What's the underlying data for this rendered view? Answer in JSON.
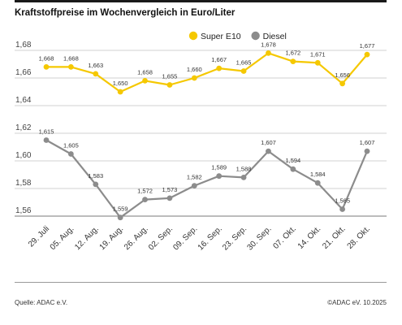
{
  "header": {
    "title": "Kraftstoffpreise im Wochenvergleich in Euro/Liter"
  },
  "footer": {
    "source": "Quelle: ADAC e.V.",
    "copyright": "©ADAC eV. 10.2025"
  },
  "chart_data": {
    "type": "line",
    "title": "Kraftstoffpreise im Wochenvergleich in Euro/Liter",
    "xlabel": "",
    "ylabel": "",
    "categories": [
      "29. Juli",
      "05. Aug.",
      "12. Aug.",
      "19. Aug.",
      "26. Aug.",
      "02. Sep.",
      "09. Sep.",
      "16. Sep.",
      "23. Sep.",
      "30. Sep.",
      "07. Okt.",
      "14. Okt.",
      "21. Okt.",
      "28. Okt."
    ],
    "y_ticks": [
      "1,56",
      "1,58",
      "1,60",
      "1,62",
      "1,64",
      "1,66",
      "1,68"
    ],
    "y_tick_values": [
      1.56,
      1.58,
      1.6,
      1.62,
      1.64,
      1.66,
      1.68
    ],
    "legend_position": "top-right",
    "grid": true,
    "series": [
      {
        "name": "Super E10",
        "color": "#f5c800",
        "values": [
          1.668,
          1.668,
          1.663,
          1.65,
          1.658,
          1.655,
          1.66,
          1.667,
          1.665,
          1.678,
          1.672,
          1.671,
          1.656,
          1.677
        ],
        "labels": [
          "1,668",
          "1,668",
          "1,663",
          "1,650",
          "1,658",
          "1,655",
          "1,660",
          "1,667",
          "1,665",
          "1,678",
          "1,672",
          "1,671",
          "1,656",
          "1,677"
        ]
      },
      {
        "name": "Diesel",
        "color": "#8c8c8c",
        "values": [
          1.615,
          1.605,
          1.583,
          1.559,
          1.572,
          1.573,
          1.582,
          1.589,
          1.588,
          1.607,
          1.594,
          1.584,
          1.565,
          1.607
        ],
        "labels": [
          "1,615",
          "1,605",
          "1,583",
          "1,559",
          "1,572",
          "1,573",
          "1,582",
          "1,589",
          "1,588",
          "1,607",
          "1,594",
          "1,584",
          "1,565",
          "1,607"
        ]
      }
    ]
  }
}
